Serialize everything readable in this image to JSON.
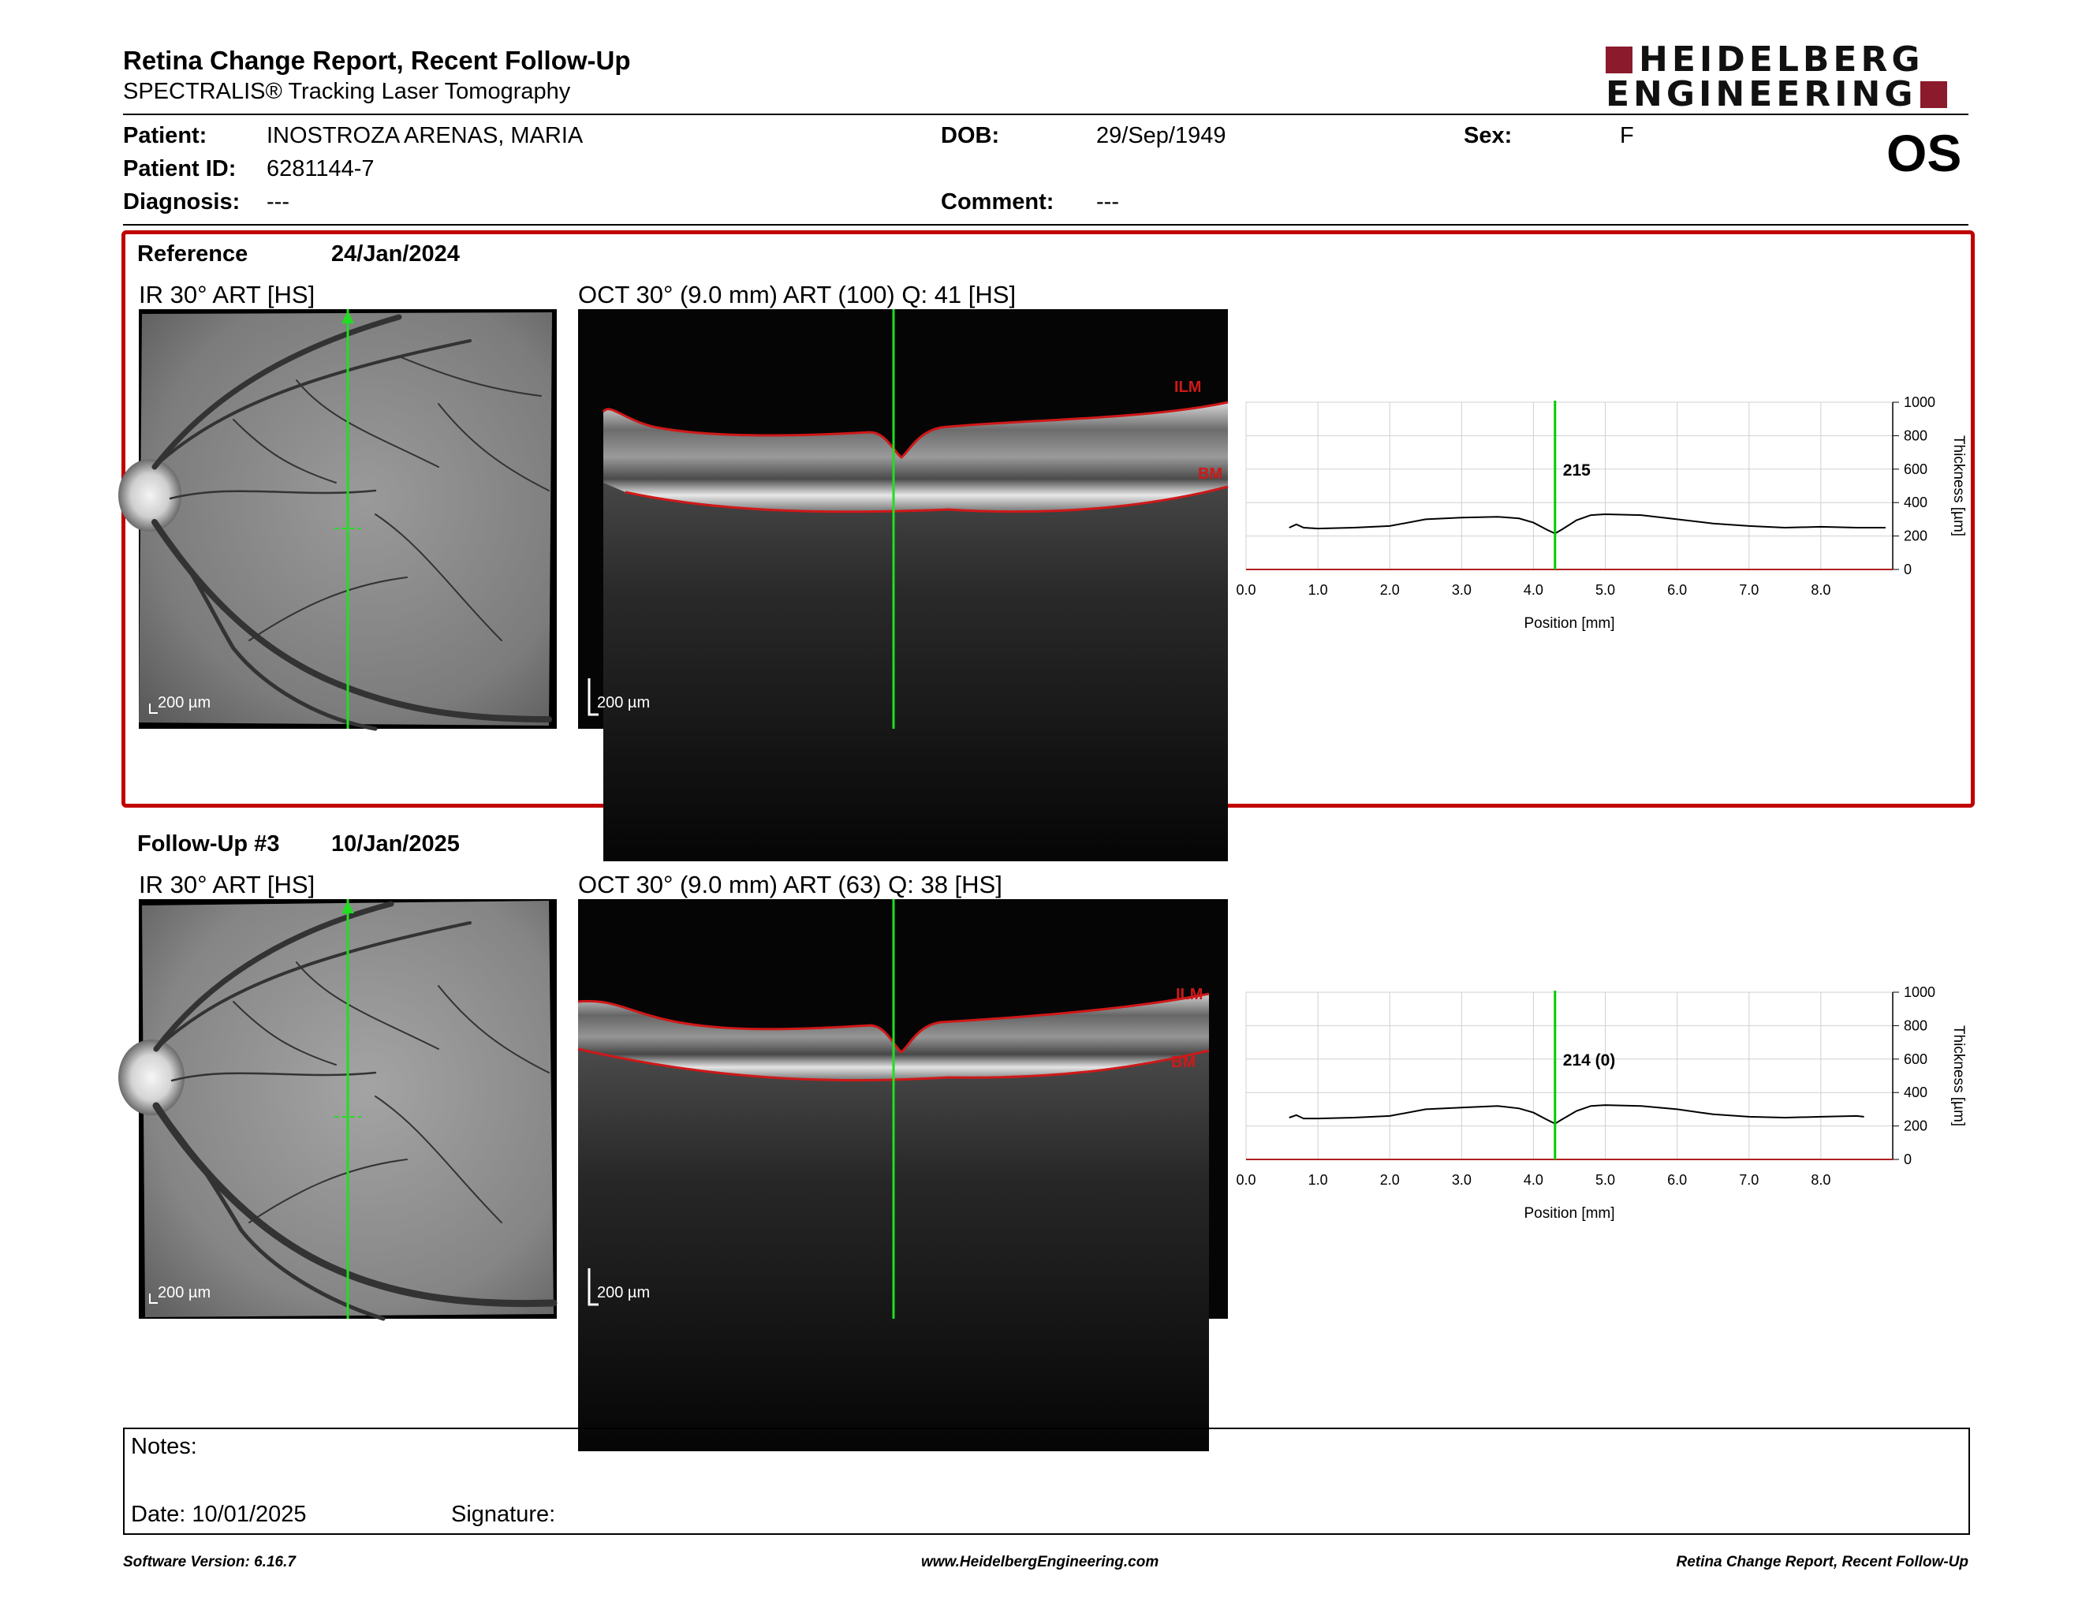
{
  "header": {
    "title": "Retina Change Report, Recent Follow-Up",
    "subtitle": "SPECTRALIS® Tracking Laser Tomography",
    "logo_line1": "HEIDELBERG",
    "logo_line2": "ENGINEERING",
    "eye": "OS"
  },
  "patient": {
    "patient_label": "Patient:",
    "patient_value": "INOSTROZA ARENAS, MARIA",
    "id_label": "Patient ID:",
    "id_value": "6281144-7",
    "diagnosis_label": "Diagnosis:",
    "diagnosis_value": "---",
    "dob_label": "DOB:",
    "dob_value": "29/Sep/1949",
    "comment_label": "Comment:",
    "comment_value": "---",
    "sex_label": "Sex:",
    "sex_value": "F"
  },
  "sections": [
    {
      "label": "Reference",
      "date": "24/Jan/2024",
      "ir_title": "IR 30° ART [HS]",
      "oct_title": "OCT 30° (9.0 mm) ART (100) Q: 41 [HS]",
      "ir_scale": "200 µm",
      "oct_scale": "200 µm",
      "ilm": "ILM",
      "bm": "BM"
    },
    {
      "label": "Follow-Up #3",
      "date": "10/Jan/2025",
      "ir_title": "IR 30° ART [HS]",
      "oct_title": "OCT 30° (9.0 mm) ART (63) Q: 38 [HS]",
      "ir_scale": "200 µm",
      "oct_scale": "200 µm",
      "ilm": "ILM",
      "bm": "BM"
    }
  ],
  "chart_data": [
    {
      "type": "line",
      "xlabel": "Position [mm]",
      "ylabel": "Thickness [µm]",
      "xlim": [
        0,
        9
      ],
      "ylim": [
        0,
        1000
      ],
      "x_ticks": [
        "0.0",
        "1.0",
        "2.0",
        "3.0",
        "4.0",
        "5.0",
        "6.0",
        "7.0",
        "8.0"
      ],
      "y_ticks": [
        "0",
        "200",
        "400",
        "600",
        "800",
        "1000"
      ],
      "grid": true,
      "cursor_x": 4.3,
      "cursor_label": "215",
      "x": [
        0.6,
        0.7,
        0.8,
        1.0,
        1.5,
        2.0,
        2.5,
        3.0,
        3.5,
        3.8,
        4.0,
        4.2,
        4.3,
        4.4,
        4.6,
        4.8,
        5.0,
        5.5,
        6.0,
        6.5,
        7.0,
        7.5,
        8.0,
        8.5,
        8.9
      ],
      "values": [
        250,
        270,
        250,
        245,
        250,
        260,
        300,
        310,
        315,
        305,
        280,
        235,
        215,
        240,
        295,
        325,
        330,
        325,
        300,
        275,
        260,
        250,
        255,
        250,
        250
      ],
      "line_color": "#000000",
      "cursor_color": "#00cc00"
    },
    {
      "type": "line",
      "xlabel": "Position [mm]",
      "ylabel": "Thickness [µm]",
      "xlim": [
        0,
        9
      ],
      "ylim": [
        0,
        1000
      ],
      "x_ticks": [
        "0.0",
        "1.0",
        "2.0",
        "3.0",
        "4.0",
        "5.0",
        "6.0",
        "7.0",
        "8.0"
      ],
      "y_ticks": [
        "0",
        "200",
        "400",
        "600",
        "800",
        "1000"
      ],
      "grid": true,
      "cursor_x": 4.3,
      "cursor_label": "214 (0)",
      "x": [
        0.6,
        0.7,
        0.8,
        1.0,
        1.5,
        2.0,
        2.5,
        3.0,
        3.5,
        3.8,
        4.0,
        4.2,
        4.3,
        4.4,
        4.6,
        4.8,
        5.0,
        5.5,
        6.0,
        6.5,
        7.0,
        7.5,
        8.0,
        8.5,
        8.6
      ],
      "values": [
        250,
        265,
        245,
        245,
        250,
        260,
        300,
        310,
        320,
        305,
        280,
        235,
        214,
        240,
        290,
        320,
        325,
        320,
        300,
        270,
        255,
        250,
        255,
        260,
        255
      ],
      "line_color": "#000000",
      "cursor_color": "#00cc00"
    }
  ],
  "notes": {
    "notes_label": "Notes:",
    "date_label": "Date: 10/01/2025",
    "signature_label": "Signature:"
  },
  "footer": {
    "left": "Software Version: 6.16.7",
    "center": "www.HeidelbergEngineering.com",
    "right": "Retina Change Report, Recent Follow-Up"
  }
}
